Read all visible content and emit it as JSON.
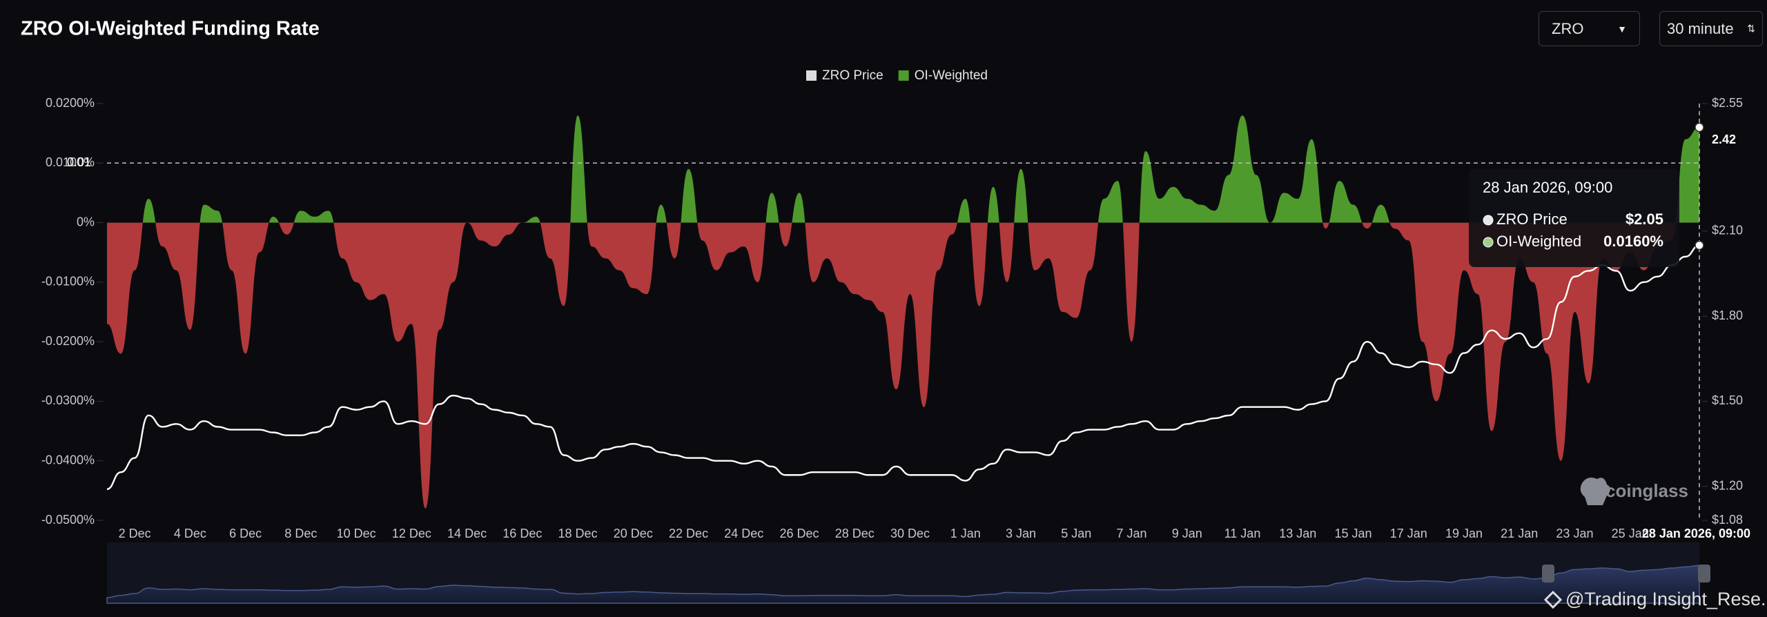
{
  "chart_data": {
    "type": "combo",
    "title": "ZRO OI-Weighted Funding Rate",
    "categories": [
      null,
      null,
      "2 Dec",
      null,
      null,
      null,
      "4 Dec",
      null,
      null,
      null,
      "6 Dec",
      null,
      null,
      null,
      "8 Dec",
      null,
      null,
      null,
      "10 Dec",
      null,
      null,
      null,
      "12 Dec",
      null,
      null,
      null,
      "14 Dec",
      null,
      null,
      null,
      "16 Dec",
      null,
      null,
      null,
      "18 Dec",
      null,
      null,
      null,
      "20 Dec",
      null,
      null,
      null,
      "22 Dec",
      null,
      null,
      null,
      "24 Dec",
      null,
      null,
      null,
      "26 Dec",
      null,
      null,
      null,
      "28 Dec",
      null,
      null,
      null,
      "30 Dec",
      null,
      null,
      null,
      "1 Jan",
      null,
      null,
      null,
      "3 Jan",
      null,
      null,
      null,
      "5 Jan",
      null,
      null,
      null,
      "7 Jan",
      null,
      null,
      null,
      "9 Jan",
      null,
      null,
      null,
      "11 Jan",
      null,
      null,
      null,
      "13 Jan",
      null,
      null,
      null,
      "15 Jan",
      null,
      null,
      null,
      "17 Jan",
      null,
      null,
      null,
      "19 Jan",
      null,
      null,
      null,
      "21 Jan",
      null,
      null,
      null,
      "23 Jan",
      null,
      null,
      null,
      "25 Jan",
      null,
      null,
      null,
      null,
      "28 Jan 2026, 09:00"
    ],
    "series": [
      {
        "name": "OI-Weighted",
        "type": "area",
        "color": "#4f9a2c",
        "negative_color": "#b23a3c",
        "values": [
          -0.017,
          -0.022,
          -0.008,
          0.004,
          -0.004,
          -0.008,
          -0.018,
          0.003,
          0.002,
          -0.008,
          -0.022,
          -0.005,
          0.001,
          -0.002,
          0.002,
          0.001,
          0.002,
          -0.006,
          -0.01,
          -0.013,
          -0.012,
          -0.02,
          -0.017,
          -0.048,
          -0.018,
          -0.01,
          0,
          -0.003,
          -0.004,
          -0.002,
          0,
          0.001,
          -0.006,
          -0.014,
          0.018,
          -0.004,
          -0.006,
          -0.008,
          -0.011,
          -0.012,
          0.003,
          -0.006,
          0.009,
          -0.003,
          -0.008,
          -0.005,
          -0.004,
          -0.01,
          0.005,
          -0.004,
          0.005,
          -0.01,
          -0.006,
          -0.01,
          -0.012,
          -0.013,
          -0.015,
          -0.028,
          -0.012,
          -0.031,
          -0.008,
          -0.002,
          0.004,
          -0.014,
          0.006,
          -0.01,
          0.009,
          -0.008,
          -0.006,
          -0.015,
          -0.016,
          -0.008,
          0.004,
          0.007,
          -0.02,
          0.012,
          0.004,
          0.006,
          0.004,
          0.003,
          0.002,
          0.008,
          0.018,
          0.008,
          0,
          0.005,
          0.004,
          0.014,
          -0.001,
          0.007,
          0.003,
          -0.001,
          0.003,
          -0.001,
          -0.003,
          -0.02,
          -0.03,
          -0.022,
          -0.008,
          -0.012,
          -0.035,
          -0.02,
          -0.006,
          -0.01,
          -0.022,
          -0.04,
          -0.015,
          -0.027,
          -0.006,
          -0.008,
          -0.005,
          -0.008,
          -0.004,
          -0.003,
          0.014,
          0.016
        ]
      },
      {
        "name": "ZRO Price",
        "type": "line",
        "axis": "y2",
        "color": "#ffffff",
        "values": [
          1.19,
          1.25,
          1.3,
          1.45,
          1.41,
          1.42,
          1.4,
          1.43,
          1.41,
          1.4,
          1.4,
          1.4,
          1.39,
          1.38,
          1.38,
          1.39,
          1.41,
          1.48,
          1.47,
          1.48,
          1.5,
          1.42,
          1.43,
          1.42,
          1.49,
          1.52,
          1.51,
          1.49,
          1.47,
          1.46,
          1.45,
          1.42,
          1.41,
          1.31,
          1.29,
          1.3,
          1.33,
          1.34,
          1.35,
          1.34,
          1.32,
          1.31,
          1.3,
          1.3,
          1.29,
          1.29,
          1.28,
          1.29,
          1.27,
          1.24,
          1.24,
          1.25,
          1.25,
          1.25,
          1.25,
          1.24,
          1.24,
          1.27,
          1.24,
          1.24,
          1.24,
          1.24,
          1.22,
          1.26,
          1.28,
          1.33,
          1.32,
          1.32,
          1.31,
          1.36,
          1.39,
          1.4,
          1.4,
          1.41,
          1.42,
          1.43,
          1.4,
          1.4,
          1.42,
          1.43,
          1.44,
          1.45,
          1.48,
          1.48,
          1.48,
          1.48,
          1.47,
          1.49,
          1.5,
          1.58,
          1.64,
          1.71,
          1.67,
          1.63,
          1.62,
          1.64,
          1.63,
          1.6,
          1.67,
          1.7,
          1.75,
          1.72,
          1.74,
          1.69,
          1.72,
          1.85,
          1.94,
          1.96,
          1.98,
          1.96,
          1.89,
          1.92,
          1.94,
          1.98,
          2.01,
          2.05
        ]
      }
    ],
    "legend_order": [
      1,
      0
    ],
    "ylim": [
      -0.05,
      0.02
    ],
    "yticks": [
      {
        "value": 0.02,
        "label": "0.0200%"
      },
      {
        "value": 0.01,
        "label": "0.0100%"
      },
      {
        "value": 0,
        "label": "0%"
      },
      {
        "value": -0.01,
        "label": "-0.0100%"
      },
      {
        "value": -0.02,
        "label": "-0.0200%"
      },
      {
        "value": -0.03,
        "label": "-0.0300%"
      },
      {
        "value": -0.04,
        "label": "-0.0400%"
      },
      {
        "value": -0.05,
        "label": "-0.0500%"
      }
    ],
    "y2lim": [
      1.08,
      2.55
    ],
    "y2ticks": [
      {
        "value": 2.55,
        "label": "$2.55"
      },
      {
        "value": 2.1,
        "label": "$2.10"
      },
      {
        "value": 1.8,
        "label": "$1.80"
      },
      {
        "value": 1.5,
        "label": "$1.50"
      },
      {
        "value": 1.2,
        "label": "$1.20"
      },
      {
        "value": 1.08,
        "label": "$1.08"
      }
    ],
    "crosshair": {
      "y": 0.01,
      "y2": 2.42
    },
    "tooltip": {
      "rows": [
        {
          "value": 2.05,
          "label": "$2.05"
        },
        {
          "value": 0.016,
          "label": "0.0160%"
        }
      ]
    }
  },
  "controls": {
    "symbol": "ZRO",
    "interval": "30 minute"
  },
  "watermarks": {
    "brand": "coinglass",
    "credit": "@Trading Insight_Rese..."
  }
}
